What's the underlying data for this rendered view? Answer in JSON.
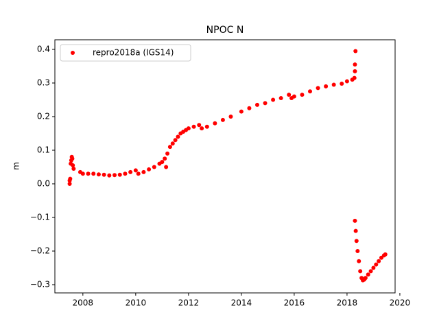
{
  "chart_data": {
    "type": "scatter",
    "title": "NPOC N",
    "y_label": "m",
    "x": [
      2007.5,
      2007.5,
      2007.52,
      2007.54,
      2007.56,
      2007.58,
      2007.6,
      2007.62,
      2007.65,
      2007.9,
      2008.0,
      2008.2,
      2008.4,
      2008.6,
      2008.8,
      2009.0,
      2009.2,
      2009.4,
      2009.6,
      2009.8,
      2010.0,
      2010.1,
      2010.3,
      2010.5,
      2010.7,
      2010.9,
      2011.0,
      2011.1,
      2011.15,
      2011.2,
      2011.3,
      2011.4,
      2011.5,
      2011.6,
      2011.7,
      2011.8,
      2011.9,
      2012.0,
      2012.2,
      2012.4,
      2012.5,
      2012.7,
      2013.0,
      2013.3,
      2013.6,
      2014.0,
      2014.3,
      2014.6,
      2014.9,
      2015.2,
      2015.5,
      2015.8,
      2015.9,
      2016.0,
      2016.3,
      2016.6,
      2016.9,
      2017.2,
      2017.5,
      2017.8,
      2018.0,
      2018.2,
      2018.28,
      2018.3,
      2018.3,
      2018.32,
      2018.3,
      2018.33,
      2018.36,
      2018.4,
      2018.45,
      2018.5,
      2018.55,
      2018.6,
      2018.65,
      2018.7,
      2018.8,
      2018.9,
      2019.0,
      2019.1,
      2019.2,
      2019.3,
      2019.4,
      2019.45
    ],
    "series": [
      {
        "name": "repro2018a (IGS14)",
        "color": "#ff0000",
        "values": [
          0.0,
          0.01,
          0.015,
          0.06,
          0.07,
          0.08,
          0.075,
          0.055,
          0.045,
          0.035,
          0.03,
          0.03,
          0.03,
          0.028,
          0.027,
          0.025,
          0.026,
          0.027,
          0.03,
          0.035,
          0.04,
          0.03,
          0.035,
          0.043,
          0.05,
          0.06,
          0.065,
          0.075,
          0.05,
          0.09,
          0.11,
          0.12,
          0.13,
          0.14,
          0.15,
          0.155,
          0.16,
          0.165,
          0.17,
          0.175,
          0.165,
          0.17,
          0.18,
          0.19,
          0.2,
          0.215,
          0.225,
          0.235,
          0.24,
          0.25,
          0.255,
          0.265,
          0.255,
          0.26,
          0.265,
          0.275,
          0.285,
          0.29,
          0.295,
          0.298,
          0.305,
          0.31,
          0.315,
          0.335,
          0.355,
          0.395,
          -0.11,
          -0.14,
          -0.17,
          -0.2,
          -0.23,
          -0.26,
          -0.28,
          -0.287,
          -0.285,
          -0.28,
          -0.27,
          -0.26,
          -0.25,
          -0.24,
          -0.23,
          -0.22,
          -0.213,
          -0.21
        ]
      }
    ],
    "xlim": [
      2006.94,
      2019.82
    ],
    "xticks": [
      2008,
      2010,
      2012,
      2014,
      2016,
      2018,
      2020
    ],
    "ylim": [
      -0.3245,
      0.4286
    ],
    "yticks": [
      {
        "value": -0.3,
        "label": "−0.3"
      },
      {
        "value": -0.2,
        "label": "−0.2"
      },
      {
        "value": -0.1,
        "label": "−0.1"
      },
      {
        "value": 0,
        "label": "0.0"
      },
      0.1,
      0.2,
      0.3,
      0.4
    ],
    "legend": "upper left"
  }
}
